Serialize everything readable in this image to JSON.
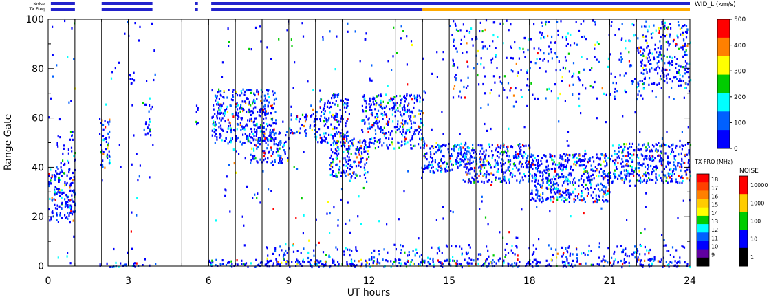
{
  "chart_data": {
    "type": "heatmap",
    "xlabel": "UT hours",
    "ylabel": "Range Gate",
    "xlim": [
      0,
      24
    ],
    "ylim": [
      0,
      100
    ],
    "x_ticks": [
      "0",
      "3",
      "6",
      "9",
      "12",
      "15",
      "18",
      "21",
      "24"
    ],
    "y_ticks": [
      "0",
      "20",
      "40",
      "60",
      "80",
      "100"
    ],
    "scan_boundaries_ut": [
      1,
      2,
      3,
      4,
      5,
      6,
      7,
      8,
      9,
      10,
      11,
      12,
      13,
      14,
      15,
      16,
      17,
      18,
      19,
      20,
      21,
      22,
      23
    ],
    "status_bars": {
      "noise_label": "Noise",
      "txfreq_label": "TX Freq",
      "segments": [
        [
          0.1,
          1.0
        ],
        [
          2.0,
          3.9
        ],
        [
          5.5,
          5.6
        ],
        [
          6.1,
          24.0
        ]
      ],
      "txfreq_changes_from_ut": 14.0
    },
    "colorbar_width": {
      "title": "WID_L (km/s)",
      "ticks": [
        "500",
        "400",
        "300",
        "200",
        "100",
        "0"
      ],
      "colors": [
        "#ff0000",
        "#ff8000",
        "#ffff00",
        "#00cc00",
        "#00ffff",
        "#0060ff",
        "#0000ff"
      ]
    },
    "colorbar_txfreq": {
      "title": "TX FRQ (MHz)",
      "ticks": [
        "18",
        "17",
        "16",
        "15",
        "14",
        "13",
        "12",
        "11",
        "10",
        "9"
      ],
      "colors": [
        "#ff0000",
        "#ff4000",
        "#ff8000",
        "#ffcc00",
        "#ffff00",
        "#00cc00",
        "#00ffff",
        "#0060ff",
        "#0000ff",
        "#6000a0",
        "#000000"
      ]
    },
    "colorbar_noise": {
      "title": "NOISE",
      "ticks": [
        "10000",
        "1000",
        "100",
        "10",
        "1"
      ],
      "colors": [
        "#ff0000",
        "#ffcc00",
        "#00cc00",
        "#0000ff",
        "#000000"
      ]
    },
    "echo_regions": [
      {
        "x0": 0.0,
        "x1": 1.0,
        "y0": 18,
        "y1": 40,
        "density": 0.75
      },
      {
        "x0": 0.3,
        "x1": 1.0,
        "y0": 40,
        "y1": 55,
        "density": 0.25
      },
      {
        "x0": 1.9,
        "x1": 2.3,
        "y0": 40,
        "y1": 60,
        "density": 0.6
      },
      {
        "x0": 3.0,
        "x1": 3.2,
        "y0": 72,
        "y1": 80,
        "density": 0.5
      },
      {
        "x0": 3.6,
        "x1": 3.9,
        "y0": 52,
        "y1": 66,
        "density": 0.4
      },
      {
        "x0": 5.5,
        "x1": 5.6,
        "y0": 57,
        "y1": 66,
        "density": 0.7
      },
      {
        "x0": 6.1,
        "x1": 8.5,
        "y0": 50,
        "y1": 72,
        "density": 0.7
      },
      {
        "x0": 7.5,
        "x1": 9.0,
        "y0": 42,
        "y1": 55,
        "density": 0.6
      },
      {
        "x0": 9.0,
        "x1": 9.8,
        "y0": 54,
        "y1": 62,
        "density": 0.55
      },
      {
        "x0": 9.8,
        "x1": 11.2,
        "y0": 50,
        "y1": 70,
        "density": 0.6
      },
      {
        "x0": 10.5,
        "x1": 12.0,
        "y0": 36,
        "y1": 52,
        "density": 0.7
      },
      {
        "x0": 11.7,
        "x1": 14.0,
        "y0": 48,
        "y1": 70,
        "density": 0.65
      },
      {
        "x0": 14.0,
        "x1": 15.5,
        "y0": 38,
        "y1": 50,
        "density": 0.8
      },
      {
        "x0": 15.5,
        "x1": 18.0,
        "y0": 34,
        "y1": 50,
        "density": 0.8
      },
      {
        "x0": 18.0,
        "x1": 21.0,
        "y0": 26,
        "y1": 46,
        "density": 0.8
      },
      {
        "x0": 21.0,
        "x1": 24.0,
        "y0": 34,
        "y1": 50,
        "density": 0.75
      },
      {
        "x0": 15.0,
        "x1": 24.0,
        "y0": 68,
        "y1": 100,
        "density": 0.12
      },
      {
        "x0": 22.0,
        "x1": 24.0,
        "y0": 72,
        "y1": 98,
        "density": 0.35
      },
      {
        "x0": 1.9,
        "x1": 4.0,
        "y0": 0,
        "y1": 2,
        "density": 0.6
      },
      {
        "x0": 6.0,
        "x1": 24.0,
        "y0": 0,
        "y1": 3,
        "density": 0.8
      },
      {
        "x0": 8.0,
        "x1": 24.0,
        "y0": 3,
        "y1": 9,
        "density": 0.2
      }
    ]
  }
}
